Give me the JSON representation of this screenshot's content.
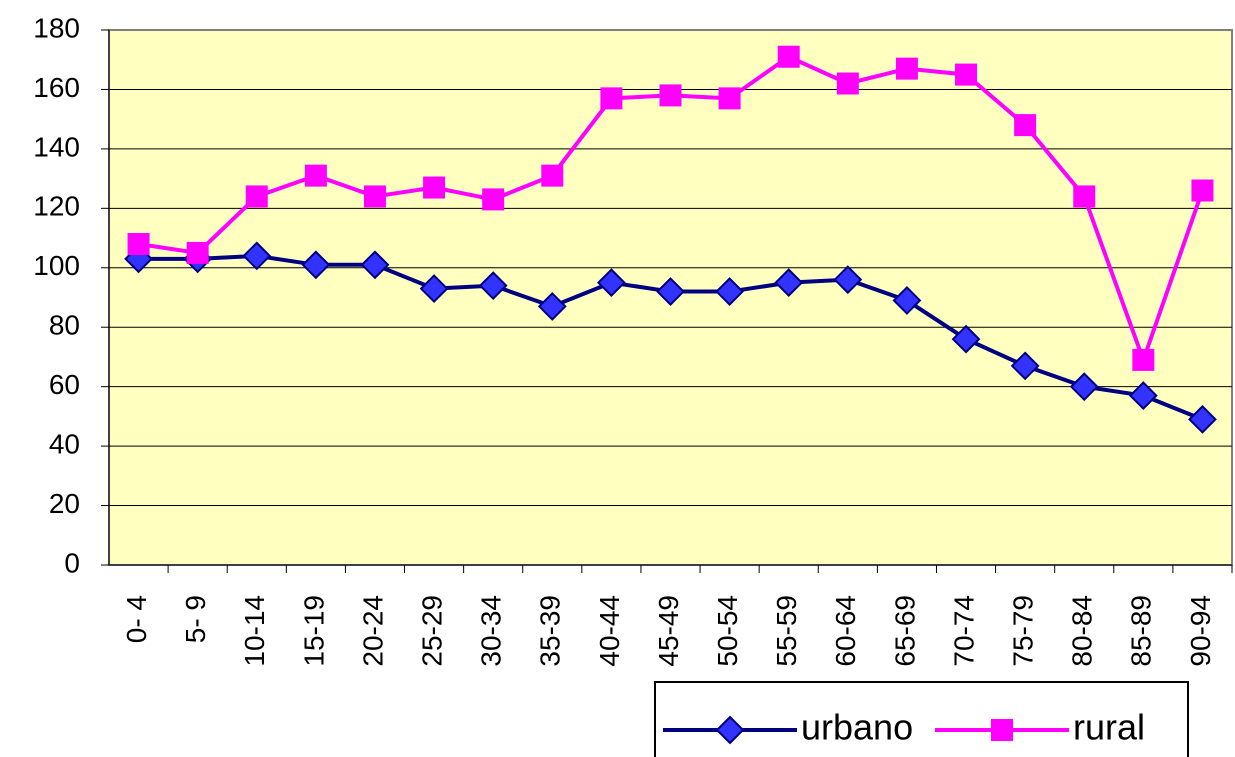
{
  "chart_data": {
    "type": "line",
    "categories": [
      "0- 4",
      "5- 9",
      "10-14",
      "15-19",
      "20-24",
      "25-29",
      "30-34",
      "35-39",
      "40-44",
      "45-49",
      "50-54",
      "55-59",
      "60-64",
      "65-69",
      "70-74",
      "75-79",
      "80-84",
      "85-89",
      "90-94"
    ],
    "series": [
      {
        "name": "urbano",
        "color": "#000080",
        "marker_color": "#3333ff",
        "marker": "diamond",
        "values": [
          103,
          103,
          104,
          101,
          101,
          93,
          94,
          87,
          95,
          92,
          92,
          95,
          96,
          89,
          76,
          67,
          60,
          57,
          49
        ]
      },
      {
        "name": "rural",
        "color": "#ff00ff",
        "marker_color": "#ff00ff",
        "marker": "square",
        "values": [
          108,
          105,
          124,
          131,
          124,
          127,
          123,
          131,
          157,
          158,
          157,
          171,
          162,
          167,
          165,
          148,
          124,
          69,
          126
        ]
      }
    ],
    "ylim": [
      0,
      180
    ],
    "yticks": [
      0,
      20,
      40,
      60,
      80,
      100,
      120,
      140,
      160,
      180
    ],
    "grid": true,
    "plot_background": "#ffffc0",
    "legend": "bottom"
  }
}
